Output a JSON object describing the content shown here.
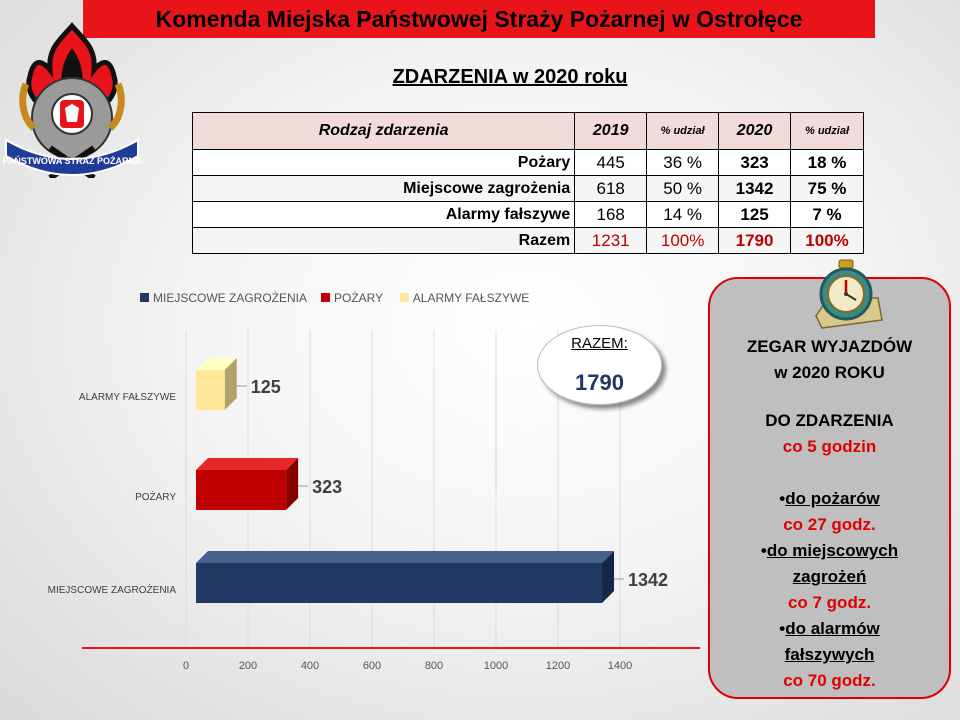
{
  "header": {
    "title": "Komenda Miejska Państwowej Straży Pożarnej w Ostrołęce"
  },
  "logo": {
    "text": "PAŃSTWOWA STRAŻ POŻARNA",
    "icon": "fire-service-emblem-icon"
  },
  "subtitle": "ZDARZENIA w 2020 roku",
  "table": {
    "headers": {
      "type": "Rodzaj zdarzenia",
      "y2019": "2019",
      "share1": "% udział",
      "y2020": "2020",
      "share2": "% udział"
    },
    "rows": [
      {
        "label": "Pożary",
        "v2019": "445",
        "p2019": "36 %",
        "v2020": "323",
        "p2020": "18 %"
      },
      {
        "label": "Miejscowe zagrożenia",
        "v2019": "618",
        "p2019": "50 %",
        "v2020": "1342",
        "p2020": "75 %"
      },
      {
        "label": "Alarmy fałszywe",
        "v2019": "168",
        "p2019": "14 %",
        "v2020": "125",
        "p2020": "7 %"
      },
      {
        "label": "Razem",
        "v2019": "1231",
        "p2019": "100%",
        "v2020": "1790",
        "p2020": "100%"
      }
    ]
  },
  "chart_data": {
    "type": "bar",
    "orientation": "horizontal",
    "categories": [
      "ALARMY FAŁSZYWE",
      "POŻARY",
      "MIEJSCOWE ZAGROŻENIA"
    ],
    "values": [
      125,
      323,
      1342
    ],
    "colors": [
      "#ffe699",
      "#c00000",
      "#1f3864"
    ],
    "legend": [
      "MIEJSCOWE ZAGROŻENIA",
      "POŻARY",
      "ALARMY FAŁSZYWE"
    ],
    "legend_colors": [
      "#1f3864",
      "#c00000",
      "#ffe699"
    ],
    "legend_position": "top",
    "xlim": [
      0,
      1400
    ],
    "xticks": [
      "0",
      "200",
      "400",
      "600",
      "800",
      "1000",
      "1200",
      "1400"
    ],
    "grid": true
  },
  "badge": {
    "label": "RAZEM:",
    "value": "1790"
  },
  "panel": {
    "icon": "stopwatch-icon",
    "title1": "ZEGAR WYJAZDÓW",
    "title2": "w 2020 ROKU",
    "l1": "DO ZDARZENIA",
    "l2": "co 5 godzin",
    "l3": "do pożarów",
    "l4": "co 27 godz.",
    "l5": "do miejscowych",
    "l6": "zagrożeń",
    "l7": "co 7 godz.",
    "l8": "do alarmów",
    "l9": "fałszywych",
    "l10": "co 70 godz."
  }
}
